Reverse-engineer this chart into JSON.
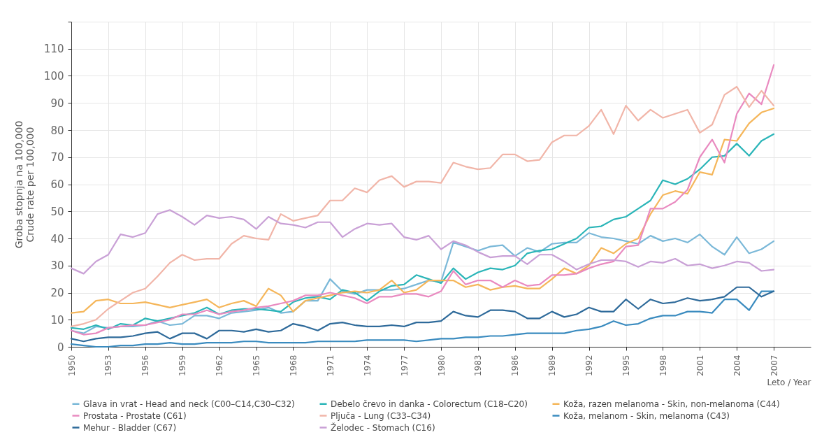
{
  "chart_data": {
    "type": "line",
    "xlabel": "Leto / Year",
    "ylabel": "Groba stopnja na 100,000\nCrude rate per 100,000",
    "x": [
      1950,
      1951,
      1952,
      1953,
      1954,
      1955,
      1956,
      1957,
      1958,
      1959,
      1960,
      1961,
      1962,
      1963,
      1964,
      1965,
      1966,
      1967,
      1968,
      1969,
      1970,
      1971,
      1972,
      1973,
      1974,
      1975,
      1976,
      1977,
      1978,
      1979,
      1980,
      1981,
      1982,
      1983,
      1984,
      1985,
      1986,
      1987,
      1988,
      1989,
      1990,
      1991,
      1992,
      1993,
      1994,
      1995,
      1996,
      1997,
      1998,
      1999,
      2000,
      2001,
      2002,
      2003,
      2004,
      2005,
      2006,
      2007
    ],
    "series": [
      {
        "name": "Glava in vrat - Head and neck (C00–C14,C30–C32)",
        "color": "#7ab8d8",
        "values": [
          6,
          5,
          7.5,
          7,
          7.5,
          7.5,
          8,
          9.5,
          8,
          8.5,
          11.5,
          11.5,
          10.5,
          12.5,
          13,
          13.5,
          14.5,
          12.5,
          13,
          17,
          17,
          25,
          20.5,
          19.5,
          21,
          21,
          21,
          21.5,
          23,
          24.5,
          24,
          38.5,
          37,
          35.5,
          37,
          37.5,
          33.5,
          36.5,
          35,
          38,
          38.5,
          38.5,
          42,
          40.5,
          40,
          39,
          38,
          41,
          39,
          40,
          38.5,
          41.5,
          37,
          34,
          40.5,
          34.5,
          36,
          39
        ]
      },
      {
        "name": "Debelo črevo in danka - Colorectum (C18–C20)",
        "color": "#2bb5b8",
        "values": [
          7,
          6.5,
          8,
          6.5,
          8.5,
          8,
          10.5,
          9.5,
          10.5,
          11.5,
          12.5,
          14.5,
          12,
          13.5,
          14,
          14,
          13.5,
          13,
          16.5,
          18,
          18.5,
          17.5,
          21,
          20,
          17,
          20.5,
          22.5,
          23,
          26.5,
          25,
          23.5,
          29,
          25,
          27.5,
          29,
          28.5,
          30,
          34.5,
          35.5,
          36,
          38,
          40,
          44,
          44.5,
          47,
          48,
          51,
          54,
          61.5,
          60,
          62,
          65.5,
          70,
          70.5,
          75,
          70.5,
          76,
          78.5
        ]
      },
      {
        "name": "Koža, razen melanoma - Skin, non-melanoma (C44)",
        "color": "#f5b65a",
        "values": [
          12.5,
          13,
          17,
          17.5,
          16,
          16,
          16.5,
          15.5,
          14.5,
          15.5,
          16.5,
          17.5,
          14.5,
          16,
          17,
          15,
          21.5,
          19,
          13,
          17,
          18,
          19,
          20,
          20.5,
          20,
          21,
          24.5,
          20,
          21,
          24.5,
          24.5,
          24.5,
          22,
          23,
          21,
          22,
          22.5,
          21.5,
          21.5,
          25,
          29,
          27,
          30,
          36.5,
          34.5,
          38,
          40,
          49,
          56,
          57.5,
          56.5,
          64.5,
          63.5,
          76.5,
          76,
          82.5,
          86.5,
          88
        ]
      },
      {
        "name": "Prostata - Prostate (C61)",
        "color": "#e98ac0",
        "values": [
          6,
          4.5,
          5,
          7,
          7.5,
          8,
          8,
          9,
          10,
          12,
          12,
          13.5,
          12,
          13,
          13.5,
          14.5,
          15,
          16,
          17,
          19,
          19,
          20,
          19,
          18,
          16,
          18.5,
          18.5,
          19.5,
          19.5,
          18.5,
          20.5,
          28,
          23,
          24.5,
          24.5,
          22,
          24.5,
          22.5,
          23,
          26.5,
          26.5,
          27,
          29,
          30.5,
          31.5,
          37,
          37.5,
          51,
          51,
          53.5,
          58,
          70,
          76.5,
          68,
          86,
          93.5,
          89.5,
          104
        ]
      },
      {
        "name": "Pljuča - Lung (C33–C34)",
        "color": "#f1b5a8",
        "values": [
          7.5,
          8.5,
          10,
          14,
          17,
          20,
          21.5,
          26,
          31,
          34,
          32,
          32.5,
          32.5,
          38,
          41,
          40,
          39.5,
          49,
          46.5,
          47.5,
          48.5,
          54,
          54,
          58.5,
          57,
          61.5,
          63,
          59,
          61,
          61,
          60.5,
          68,
          66.5,
          65.5,
          66,
          71,
          71,
          68.5,
          69,
          75.5,
          78,
          78,
          81.5,
          87.5,
          78.5,
          89,
          83.5,
          87.5,
          84.5,
          86,
          87.5,
          79,
          82,
          93,
          96,
          88.5,
          94.5,
          89
        ]
      },
      {
        "name": "Koža, melanom - Skin, melanoma (C43)",
        "color": "#3a8bbf",
        "values": [
          1,
          0.5,
          0,
          0,
          0.5,
          0.5,
          1,
          1,
          1.5,
          1,
          1,
          1.5,
          1.5,
          1.5,
          2,
          2,
          1.5,
          1.5,
          1.5,
          1.5,
          2,
          2,
          2,
          2,
          2.5,
          2.5,
          2.5,
          2.5,
          2,
          2.5,
          3,
          3,
          3.5,
          3.5,
          4,
          4,
          4.5,
          5,
          5,
          5,
          5,
          6,
          6.5,
          7.5,
          9.5,
          8,
          8.5,
          10.5,
          11.5,
          11.5,
          13,
          13,
          12.5,
          17.5,
          17.5,
          13.5,
          20.5,
          20.5
        ]
      },
      {
        "name": "Mehur - Bladder (C67)",
        "color": "#2e6a9a",
        "values": [
          3,
          2,
          3,
          3.5,
          3.5,
          4,
          5,
          5.5,
          3,
          5,
          5,
          3,
          6,
          6,
          5.5,
          6.5,
          5.5,
          6,
          8.5,
          7.5,
          6,
          8.5,
          9,
          8,
          7.5,
          7.5,
          8,
          7.5,
          9,
          9,
          9.5,
          13,
          11.5,
          11,
          13.5,
          13.5,
          13,
          10.5,
          10.5,
          13,
          11,
          12,
          14.5,
          13,
          13,
          17.5,
          14,
          17.5,
          16,
          16.5,
          18,
          17,
          17.5,
          18.5,
          22,
          22,
          18.5,
          20.5
        ]
      },
      {
        "name": "Želodec - Stomach (C16)",
        "color": "#c9a0d6",
        "values": [
          29,
          27,
          31.5,
          34,
          41.5,
          40.5,
          42,
          49,
          50.5,
          48,
          45,
          48.5,
          47.5,
          48,
          47,
          43.5,
          48,
          45.5,
          45,
          44,
          46,
          46,
          40.5,
          43.5,
          45.5,
          45,
          45.5,
          40.5,
          39.5,
          41,
          36,
          39,
          37.5,
          35,
          33,
          33.5,
          33.5,
          30.5,
          34,
          34,
          31.5,
          28.5,
          30.5,
          32,
          32,
          31.5,
          29.5,
          31.5,
          31,
          32.5,
          30,
          30.5,
          29,
          30,
          31.5,
          31,
          28,
          28.5
        ]
      }
    ],
    "xlim": [
      1950,
      2010
    ],
    "xticks": [
      1950,
      1953,
      1956,
      1959,
      1962,
      1965,
      1968,
      1971,
      1974,
      1977,
      1980,
      1983,
      1986,
      1989,
      1992,
      1995,
      1998,
      2001,
      2004,
      2007
    ],
    "ylim": [
      0,
      120
    ],
    "yticks": [
      0,
      10,
      20,
      30,
      40,
      50,
      60,
      70,
      80,
      90,
      100,
      110,
      {
        "value": 120,
        "label": null
      }
    ],
    "grid": true,
    "legend": "bottom",
    "line_style": "solid"
  }
}
